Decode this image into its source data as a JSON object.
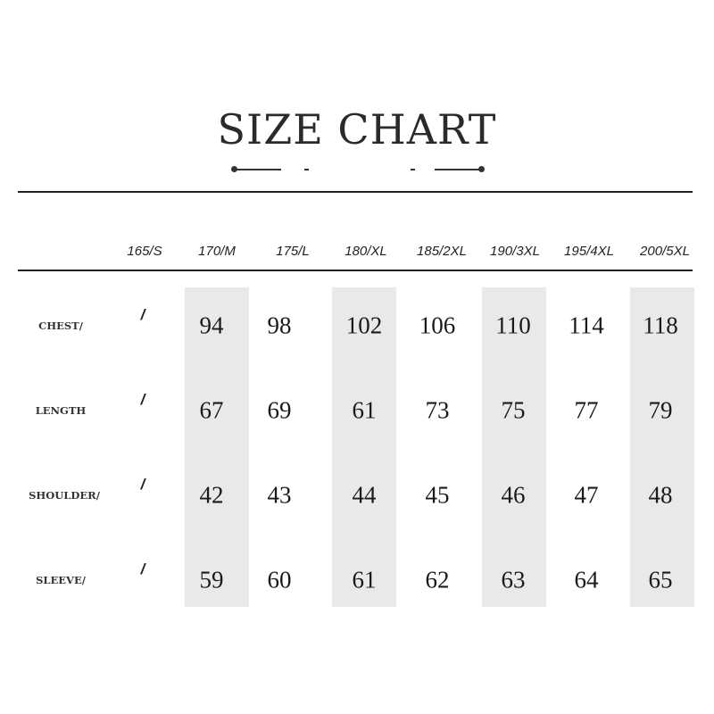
{
  "title": "SIZE CHART",
  "columns": [
    "165/S",
    "170/M",
    "175/L",
    "180/XL",
    "185/2XL",
    "190/3XL",
    "195/4XL",
    "200/5XL"
  ],
  "rows": [
    {
      "label": "CHEST/",
      "first": "/",
      "values": [
        "94",
        "98",
        "102",
        "106",
        "110",
        "114",
        "118"
      ]
    },
    {
      "label": "LENGTH",
      "first": "/",
      "values": [
        "67",
        "69",
        "61",
        "73",
        "75",
        "77",
        "79"
      ]
    },
    {
      "label": "SHOULDER/",
      "first": "/",
      "values": [
        "42",
        "43",
        "44",
        "45",
        "46",
        "47",
        "48"
      ]
    },
    {
      "label": "SLEEVE/",
      "first": "/",
      "values": [
        "59",
        "60",
        "61",
        "62",
        "63",
        "64",
        "65"
      ]
    }
  ],
  "colors": {
    "shade": "#ebe8e8",
    "text": "#222222"
  }
}
